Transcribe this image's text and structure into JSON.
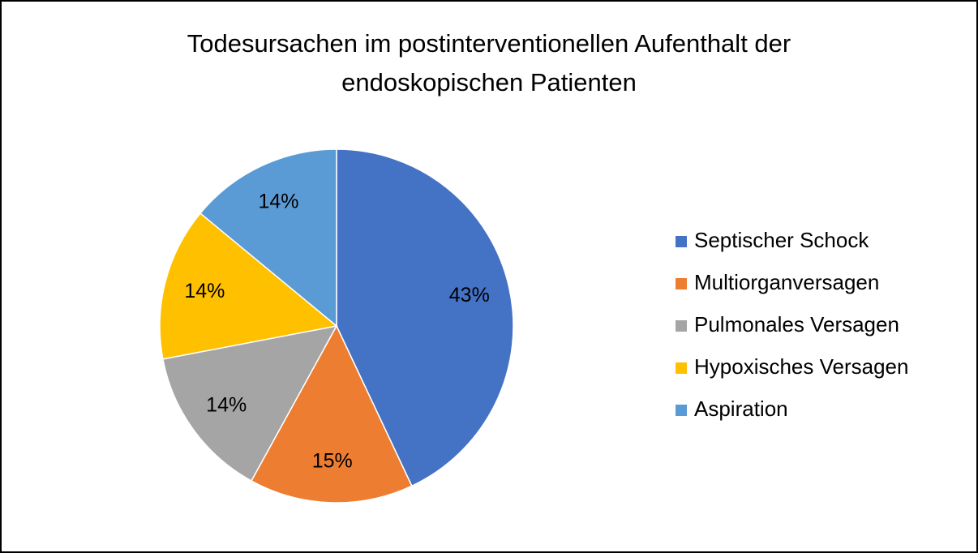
{
  "chart_data": {
    "type": "pie",
    "title": "Todesursachen im postinterventionellen Aufenthalt der endoskopischen Patienten",
    "categories": [
      "Septischer Schock",
      "Multiorganversagen",
      "Pulmonales Versagen",
      "Hypoxisches Versagen",
      "Aspiration"
    ],
    "values": [
      43,
      15,
      14,
      14,
      14
    ],
    "value_labels": [
      "43%",
      "15%",
      "14%",
      "14%",
      "14%"
    ],
    "colors": [
      "#4472c4",
      "#ed7d31",
      "#a5a5a5",
      "#ffc000",
      "#5b9bd5"
    ],
    "legend": "right"
  }
}
